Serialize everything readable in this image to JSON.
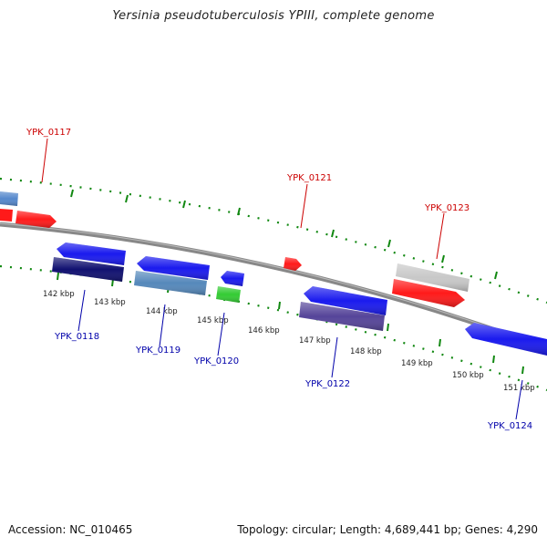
{
  "title": "Yersinia pseudotuberculosis YPIII, complete genome",
  "footer": {
    "accession": "Accession: NC_010465",
    "summary": "Topology: circular; Length: 4,689,441 bp; Genes: 4,290"
  },
  "colors": {
    "backbone": "#888888",
    "ticks": "#118811",
    "plus_label": "#cc0000",
    "minus_label": "#0000aa"
  },
  "ticks": [
    "142 kbp",
    "143 kbp",
    "144 kbp",
    "145 kbp",
    "146 kbp",
    "147 kbp",
    "148 kbp",
    "149 kbp",
    "150 kbp",
    "151 kbp"
  ],
  "gene_labels": {
    "plus": [
      "YPK_0117",
      "YPK_0121",
      "YPK_0123"
    ],
    "minus": [
      "YPK_0118",
      "YPK_0119",
      "YPK_0120",
      "YPK_0122",
      "YPK_0124"
    ]
  },
  "features": [
    {
      "name": "YPK_0116",
      "strand": "+",
      "color": "#5588cc"
    },
    {
      "name": "YPK_0117",
      "strand": "+",
      "color": "#ff1a1a"
    },
    {
      "name": "YPK_0118",
      "strand": "-",
      "color": "#1a1aee"
    },
    {
      "name": "YPK_0118-sub",
      "strand": "-",
      "color": "#101070"
    },
    {
      "name": "YPK_0119",
      "strand": "-",
      "color": "#1a1aee"
    },
    {
      "name": "YPK_0119-sub",
      "strand": "-",
      "color": "#5588bb"
    },
    {
      "name": "YPK_0120",
      "strand": "-",
      "color": "#1a1aee"
    },
    {
      "name": "YPK_0120-sub",
      "strand": "-",
      "color": "#33cc33"
    },
    {
      "name": "YPK_0121",
      "strand": "+",
      "color": "#ff1a1a"
    },
    {
      "name": "YPK_0122",
      "strand": "-",
      "color": "#1a1aee"
    },
    {
      "name": "YPK_0122-sub",
      "strand": "-",
      "color": "#554499"
    },
    {
      "name": "YPK_0123-sub",
      "strand": "+",
      "color": "#c8c8c8"
    },
    {
      "name": "YPK_0123",
      "strand": "+",
      "color": "#ff1a1a"
    },
    {
      "name": "YPK_0124",
      "strand": "-",
      "color": "#1a1aee"
    }
  ]
}
